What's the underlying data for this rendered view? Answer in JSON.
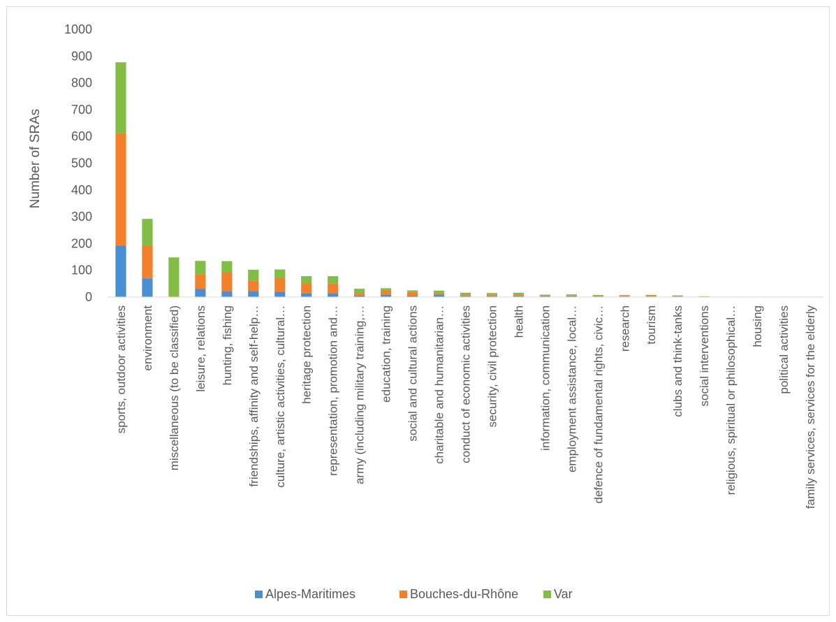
{
  "chart_data": {
    "type": "bar",
    "stacked": true,
    "title": "",
    "xlabel": "",
    "ylabel": "Number of SRAs",
    "ylim": [
      0,
      1000
    ],
    "yticks": [
      0,
      100,
      200,
      300,
      400,
      500,
      600,
      700,
      800,
      900,
      1000
    ],
    "grid": false,
    "legend_position": "bottom",
    "categories": [
      "sports, outdoor activities",
      "environment",
      "miscellaneous (to be classified)",
      "leisure, relations",
      "hunting, fishing",
      "friendships, affinity and self-help…",
      "culture, artistic activities, cultural…",
      "heritage protection",
      "representation, promotion and…",
      "army (including military training,…",
      "education, training",
      "social and cultural actions",
      "charitable and humanitarian…",
      "conduct of economic activities",
      "security, civil protection",
      "health",
      "information, communication",
      "employment assistance, local…",
      "defence of fundamental rights, civic…",
      "research",
      "tourism",
      "clubs and think-tanks",
      "social interventions",
      "religious, spiritual or philosophical…",
      "housing",
      "political activities",
      "family services, services for the elderly"
    ],
    "series": [
      {
        "name": "Alpes-Maritimes",
        "color": "#4a8fd4",
        "values": [
          192,
          70,
          0,
          30,
          22,
          22,
          20,
          15,
          13,
          6,
          8,
          5,
          8,
          3,
          3,
          3,
          3,
          3,
          2,
          2,
          2,
          2,
          1,
          1,
          0,
          0,
          0
        ]
      },
      {
        "name": "Bouches-du-Rhône",
        "color": "#f5802a",
        "values": [
          420,
          122,
          5,
          55,
          72,
          40,
          53,
          36,
          37,
          7,
          17,
          14,
          8,
          7,
          7,
          7,
          4,
          4,
          4,
          5,
          5,
          2,
          1,
          0,
          0,
          0,
          0
        ]
      },
      {
        "name": "Var",
        "color": "#82be45",
        "values": [
          265,
          100,
          143,
          50,
          40,
          40,
          30,
          27,
          28,
          18,
          8,
          6,
          8,
          6,
          5,
          6,
          2,
          3,
          2,
          0,
          1,
          2,
          1,
          0,
          0,
          0,
          0
        ]
      }
    ]
  }
}
